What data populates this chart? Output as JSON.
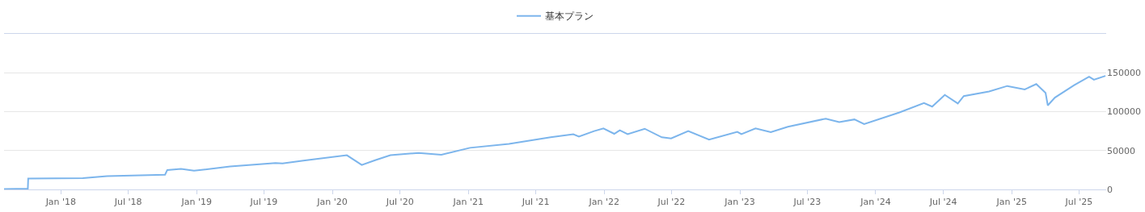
{
  "chart_data": {
    "type": "line",
    "legend": "top",
    "grid": "y",
    "marker": "none",
    "line_style": "solid",
    "xlim": [
      "2017-08-01",
      "2025-09-12"
    ],
    "xticks": [
      {
        "value": "2018-01-01",
        "label": "Jan '18"
      },
      {
        "value": "2018-07-01",
        "label": "Jul '18"
      },
      {
        "value": "2019-01-01",
        "label": "Jan '19"
      },
      {
        "value": "2019-07-01",
        "label": "Jul '19"
      },
      {
        "value": "2020-01-01",
        "label": "Jan '20"
      },
      {
        "value": "2020-07-01",
        "label": "Jul '20"
      },
      {
        "value": "2021-01-01",
        "label": "Jan '21"
      },
      {
        "value": "2021-07-01",
        "label": "Jul '21"
      },
      {
        "value": "2022-01-01",
        "label": "Jan '22"
      },
      {
        "value": "2022-07-01",
        "label": "Jul '22"
      },
      {
        "value": "2023-01-01",
        "label": "Jan '23"
      },
      {
        "value": "2023-07-01",
        "label": "Jul '23"
      },
      {
        "value": "2024-01-01",
        "label": "Jan '24"
      },
      {
        "value": "2024-07-01",
        "label": "Jul '24"
      },
      {
        "value": "2025-01-01",
        "label": "Jan '25"
      },
      {
        "value": "2025-07-01",
        "label": "Jul '25"
      }
    ],
    "ylim": [
      0,
      200000
    ],
    "yticks": [
      0,
      50000,
      100000,
      150000
    ],
    "x": [
      "2017-08-01",
      "2017-10-04",
      "2017-10-05",
      "2018-03-01",
      "2018-05-05",
      "2018-10-08",
      "2018-10-14",
      "2018-11-20",
      "2018-12-25",
      "2019-04-01",
      "2019-08-01",
      "2019-08-20",
      "2019-10-15",
      "2020-02-09",
      "2020-03-20",
      "2020-04-25",
      "2020-06-05",
      "2020-08-20",
      "2020-10-20",
      "2021-01-05",
      "2021-04-20",
      "2021-08-10",
      "2021-10-10",
      "2021-10-25",
      "2021-12-05",
      "2021-12-30",
      "2022-01-28",
      "2022-02-12",
      "2022-03-05",
      "2022-04-20",
      "2022-06-05",
      "2022-06-30",
      "2022-08-15",
      "2022-10-10",
      "2022-12-25",
      "2023-01-05",
      "2023-02-12",
      "2023-03-25",
      "2023-05-10",
      "2023-08-20",
      "2023-09-25",
      "2023-11-05",
      "2023-12-01",
      "2024-03-05",
      "2024-05-10",
      "2024-06-01",
      "2024-07-05",
      "2024-08-09",
      "2024-08-25",
      "2024-11-01",
      "2024-12-20",
      "2025-02-05",
      "2025-03-08",
      "2025-04-02",
      "2025-04-08",
      "2025-04-27",
      "2025-06-18",
      "2025-07-28",
      "2025-08-10",
      "2025-09-10"
    ],
    "series": [
      {
        "name": "基本プラン",
        "color": "#7cb5ec",
        "values": [
          500,
          1000,
          14000,
          14500,
          17000,
          19000,
          25000,
          26500,
          24000,
          29500,
          34000,
          33500,
          37000,
          44000,
          31500,
          37500,
          44000,
          47000,
          44500,
          53500,
          58500,
          67000,
          71000,
          68000,
          75000,
          78500,
          71500,
          76000,
          71000,
          78000,
          67000,
          65500,
          75000,
          64000,
          74000,
          71000,
          78500,
          73500,
          80500,
          91000,
          86500,
          90000,
          84000,
          99000,
          111000,
          106500,
          121500,
          110500,
          120000,
          126000,
          133000,
          128500,
          135500,
          124000,
          108000,
          118000,
          134000,
          145000,
          141000,
          146000
        ]
      }
    ]
  }
}
